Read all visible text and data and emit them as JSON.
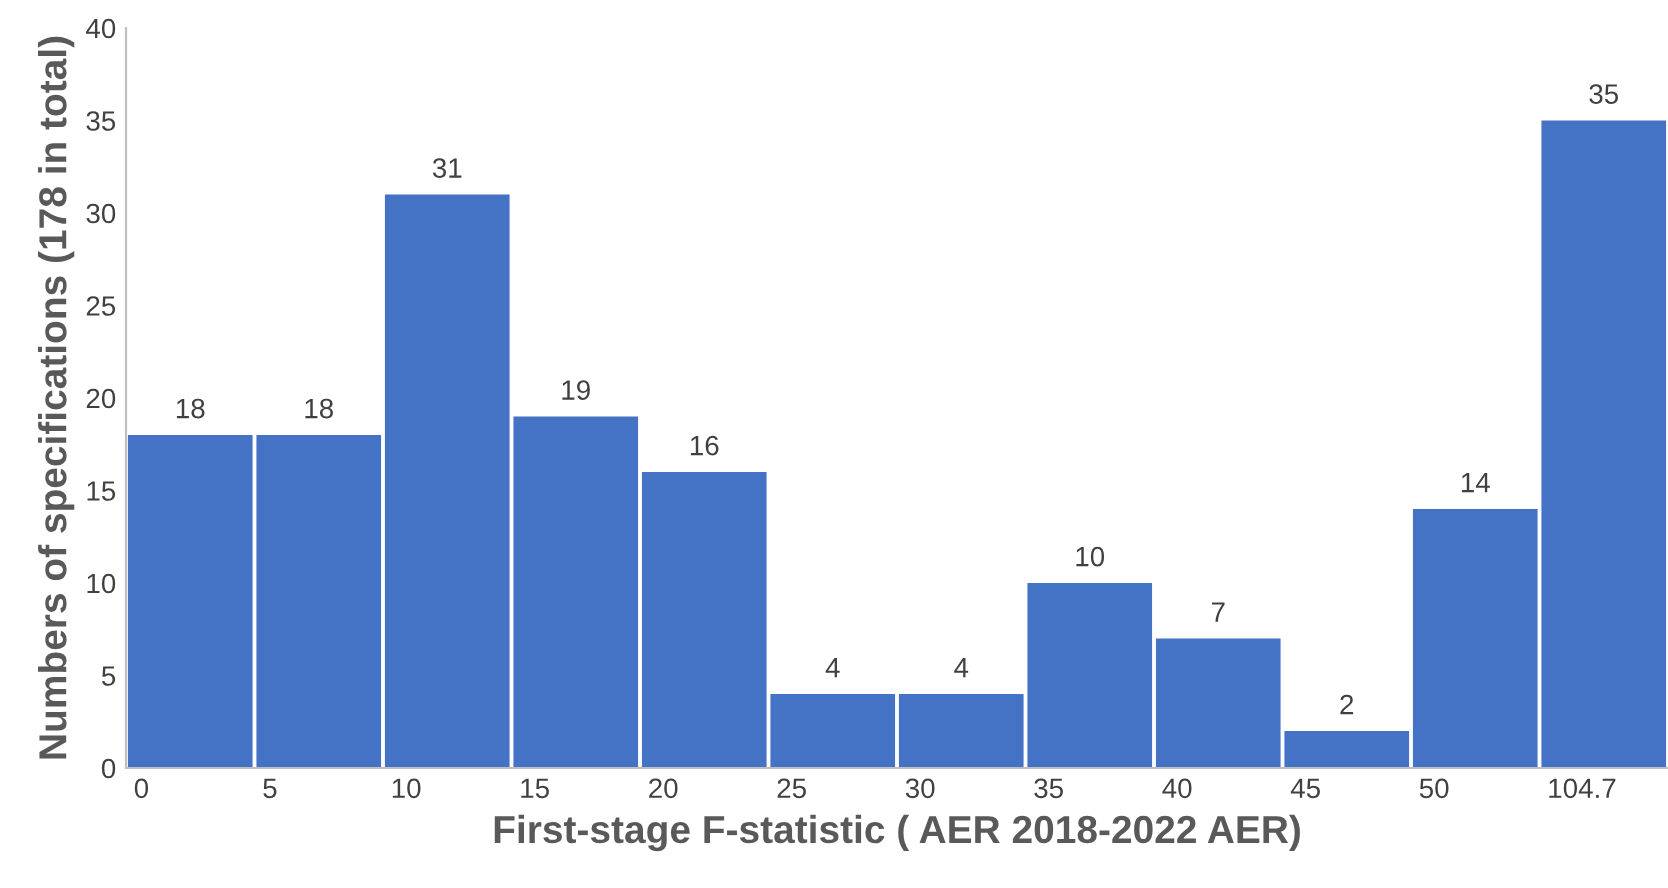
{
  "chart_data": {
    "type": "bar",
    "xlabel": "First-stage F-statistic ( AER 2018-2022 AER)",
    "ylabel": "Numbers of specifications (178 in total)",
    "categories": [
      "0",
      "5",
      "10",
      "15",
      "20",
      "25",
      "30",
      "35",
      "40",
      "45",
      "50",
      "104.7"
    ],
    "values": [
      18,
      18,
      31,
      19,
      16,
      4,
      4,
      10,
      7,
      2,
      14,
      35
    ],
    "color": "#4472c4",
    "ylim": [
      0,
      40
    ],
    "yticks": [
      0,
      5,
      10,
      15,
      20,
      25,
      30,
      35,
      40
    ],
    "data_labels": true,
    "grid": false,
    "legend": false
  }
}
